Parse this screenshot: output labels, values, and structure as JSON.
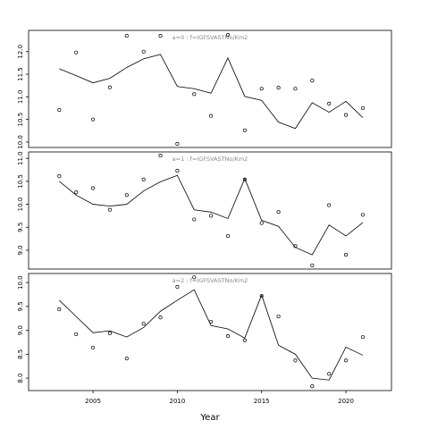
{
  "chart_data": [
    {
      "type": "line",
      "annotation": "a=0  :  f=IGFSVASTNo/Km2",
      "x": [
        2003,
        2004,
        2005,
        2006,
        2007,
        2008,
        2009,
        2010,
        2011,
        2012,
        2013,
        2014,
        2015,
        2016,
        2017,
        2018,
        2019,
        2020,
        2021
      ],
      "series": [
        {
          "style": "line",
          "color": "#000000",
          "values": [
            11.62,
            11.47,
            11.31,
            11.41,
            11.65,
            11.84,
            11.94,
            11.23,
            11.18,
            11.08,
            11.86,
            11.01,
            10.92,
            10.44,
            10.3,
            10.87,
            10.66,
            10.9,
            10.54
          ]
        },
        {
          "style": "points",
          "color": "#000000",
          "values": [
            10.71,
            11.98,
            10.5,
            11.21,
            12.35,
            12.0,
            12.35,
            9.96,
            11.06,
            10.58,
            12.37,
            10.26,
            11.18,
            11.2,
            11.18,
            11.36,
            10.85,
            10.6,
            10.75
          ]
        }
      ],
      "xlim": [
        2001.18,
        2022.7
      ],
      "ylim": [
        9.88,
        12.47
      ],
      "yticks": [
        {
          "value": 10,
          "label": "10.0"
        },
        10.5,
        {
          "value": 11,
          "label": "11.0"
        },
        11.5,
        {
          "value": 12,
          "label": "12.0"
        }
      ]
    },
    {
      "type": "line",
      "annotation": "a=1  :  f=IGFSVASTNo/Km2",
      "x": [
        2003,
        2004,
        2005,
        2006,
        2007,
        2008,
        2009,
        2010,
        2011,
        2012,
        2013,
        2014,
        2015,
        2016,
        2017,
        2018,
        2019,
        2020,
        2021
      ],
      "series": [
        {
          "style": "line",
          "color": "#000000",
          "values": [
            10.5,
            10.2,
            10.0,
            9.96,
            10.0,
            10.29,
            10.49,
            10.63,
            9.88,
            9.83,
            9.69,
            10.56,
            9.65,
            9.52,
            9.06,
            8.9,
            9.55,
            9.31,
            9.6
          ]
        },
        {
          "style": "points",
          "color": "#000000",
          "values": [
            10.61,
            10.26,
            10.35,
            9.88,
            10.2,
            10.54,
            11.06,
            10.73,
            9.67,
            9.75,
            9.31,
            10.54,
            9.59,
            9.83,
            9.09,
            8.67,
            9.98,
            8.9,
            9.77
          ]
        }
      ],
      "xlim": [
        2001.18,
        2022.7
      ],
      "ylim": [
        8.59,
        11.14
      ],
      "yticks": [
        {
          "value": 9,
          "label": "9.0"
        },
        9.5,
        {
          "value": 10,
          "label": "10.0"
        },
        10.5,
        {
          "value": 11,
          "label": "11.0"
        }
      ]
    },
    {
      "type": "line",
      "annotation": "a=2  :  f=IGFSVASTNo/Km2",
      "xlabel": "Year",
      "x": [
        2003,
        2004,
        2005,
        2006,
        2007,
        2008,
        2009,
        2010,
        2011,
        2012,
        2013,
        2014,
        2015,
        2016,
        2017,
        2018,
        2019,
        2020,
        2021
      ],
      "series": [
        {
          "style": "line",
          "color": "#000000",
          "values": [
            9.63,
            9.29,
            8.95,
            8.99,
            8.86,
            9.06,
            9.4,
            9.63,
            9.85,
            9.1,
            9.03,
            8.84,
            9.74,
            8.69,
            8.5,
            8.0,
            7.96,
            8.65,
            8.48
          ]
        },
        {
          "style": "points",
          "color": "#000000",
          "values": [
            9.44,
            8.92,
            8.64,
            8.94,
            8.41,
            9.14,
            9.27,
            9.91,
            10.11,
            9.18,
            8.88,
            8.79,
            9.72,
            9.29,
            8.37,
            7.83,
            8.09,
            8.37,
            8.86
          ]
        }
      ],
      "xlim": [
        2001.18,
        2022.7
      ],
      "ylim": [
        7.74,
        10.19
      ],
      "xticks": [
        2005,
        2010,
        2015,
        2020
      ],
      "yticks": [
        {
          "value": 8,
          "label": "8.0"
        },
        8.5,
        {
          "value": 9,
          "label": "9.0"
        },
        9.5,
        {
          "value": 10,
          "label": "10.0"
        }
      ]
    }
  ]
}
